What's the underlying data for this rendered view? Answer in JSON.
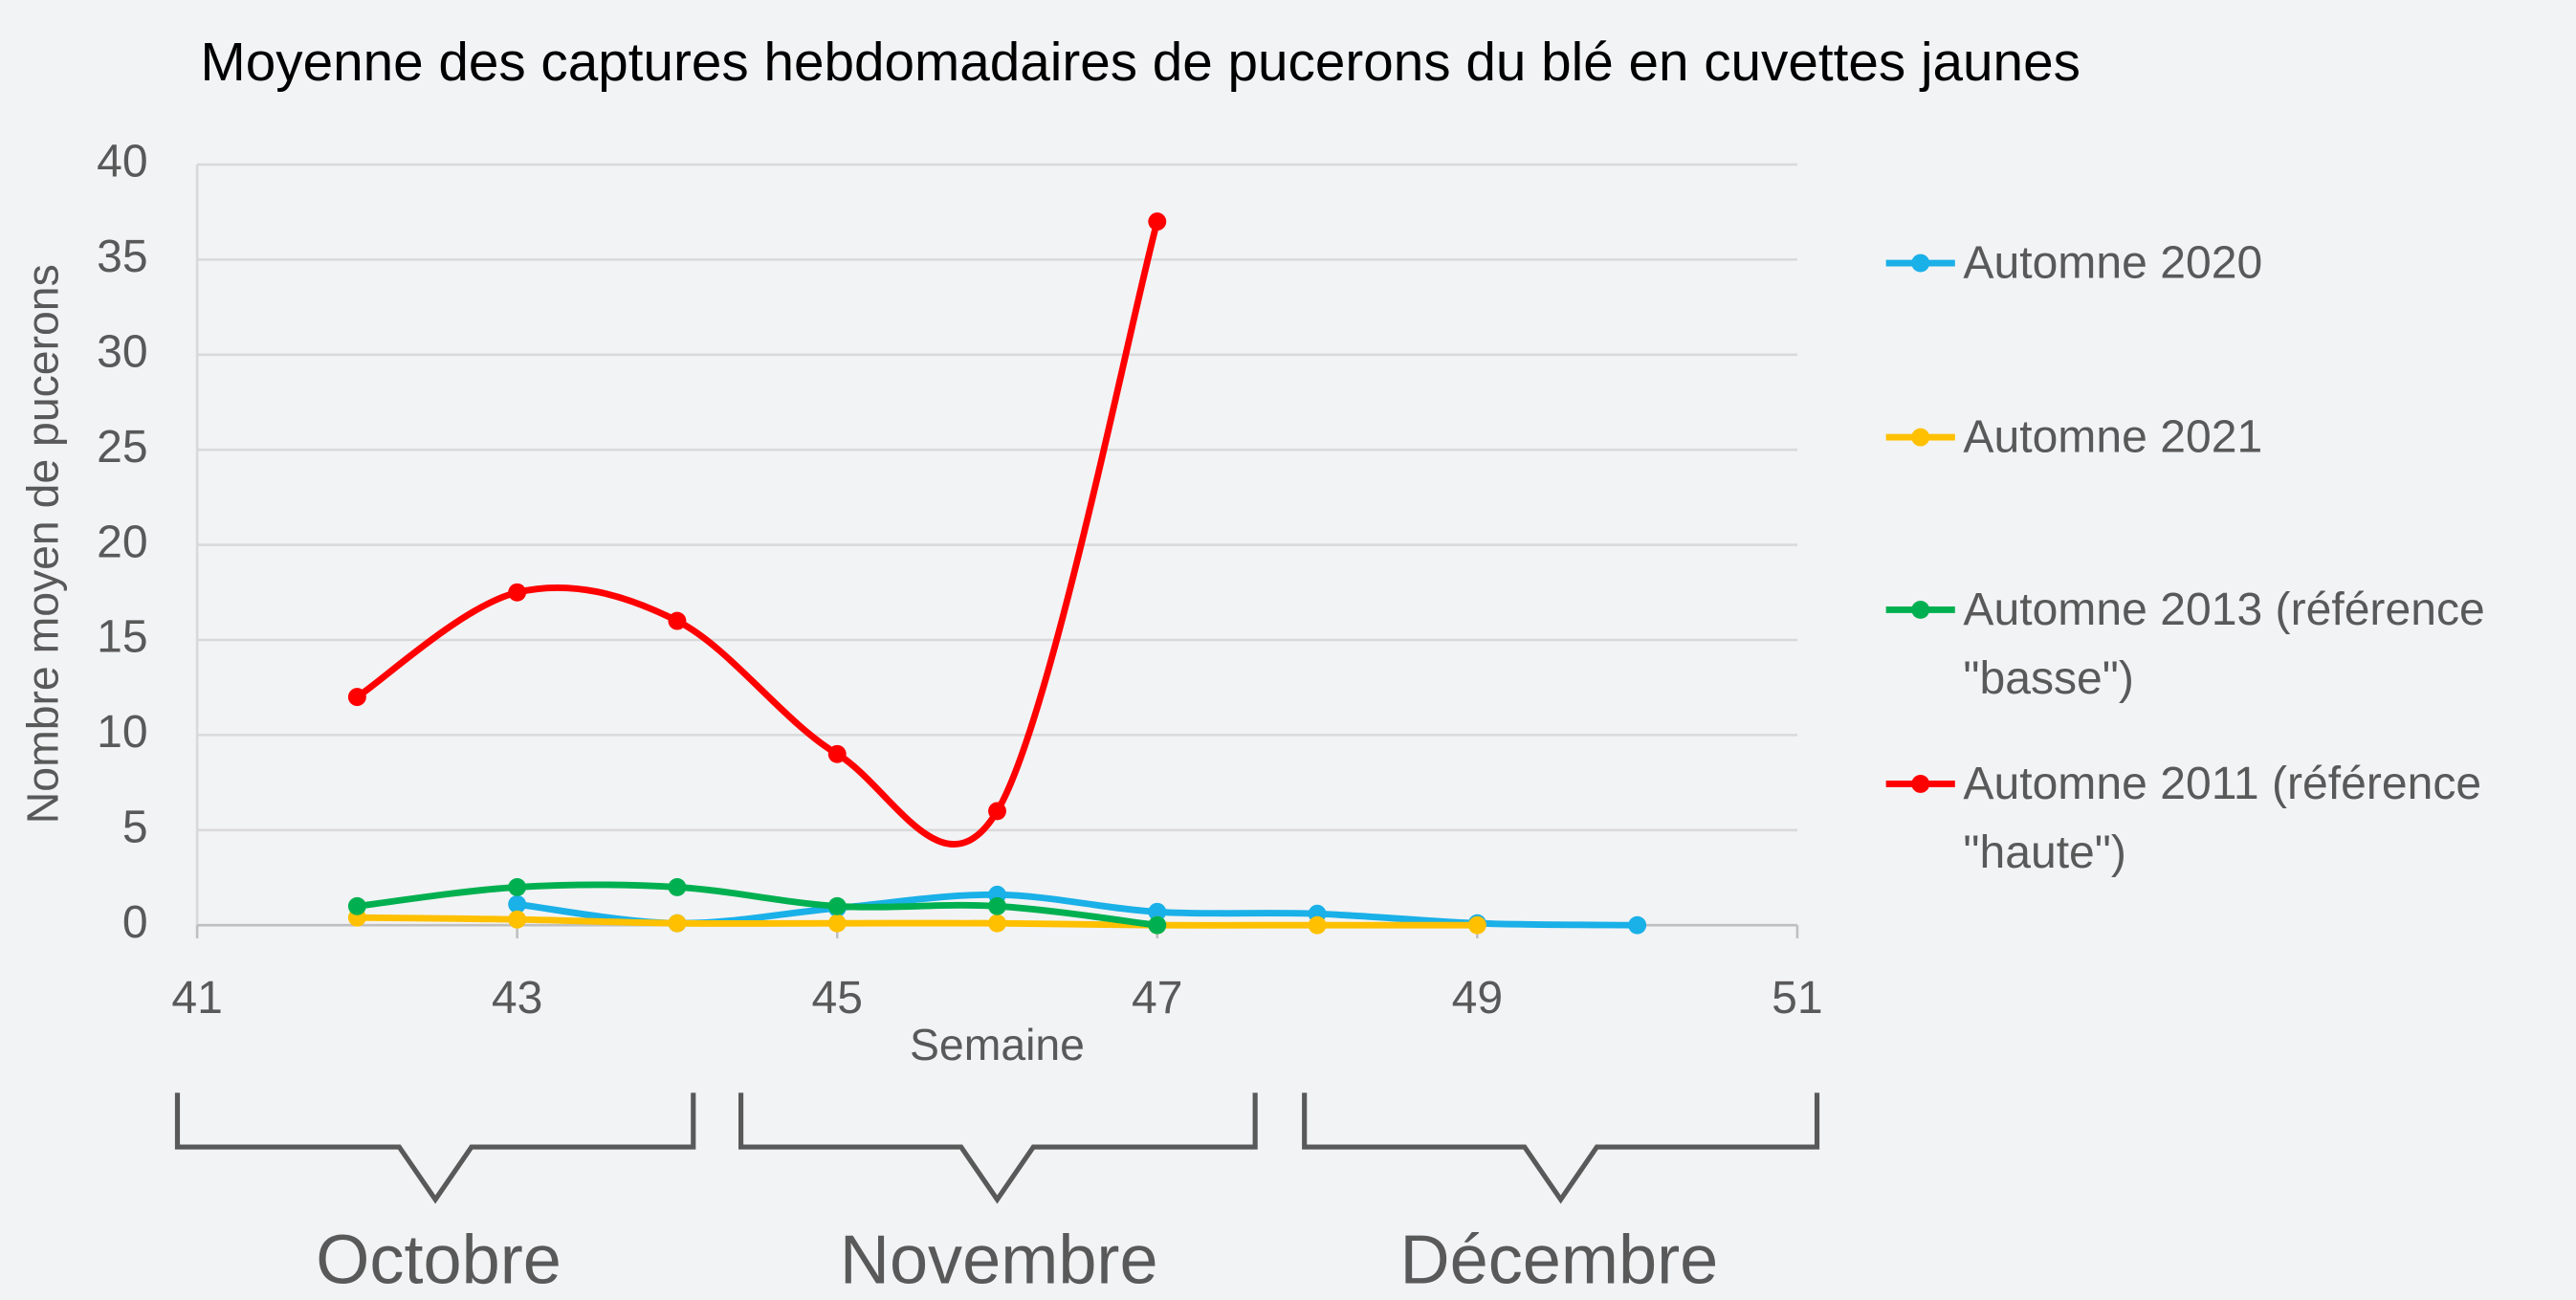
{
  "chart_data": {
    "type": "line",
    "title": "Moyenne des captures hebdomadaires de pucerons du blé en cuvettes jaunes",
    "xlabel": "Semaine",
    "ylabel": "Nombre moyen de pucerons",
    "x": [
      42,
      43,
      44,
      45,
      46,
      47,
      48,
      49,
      50
    ],
    "series": [
      {
        "name": "Automne 2020",
        "color": "#1ab0e8",
        "values": [
          null,
          1.1,
          0.1,
          0.9,
          1.6,
          0.7,
          0.6,
          0.1,
          0
        ]
      },
      {
        "name": "Automne 2021",
        "color": "#ffc000",
        "values": [
          0.4,
          0.3,
          0.1,
          0.1,
          0.1,
          0,
          0,
          0,
          null
        ]
      },
      {
        "name": "Automne 2013 (référence \"basse\")",
        "color": "#00b050",
        "values": [
          1,
          2,
          2,
          1,
          1,
          0,
          null,
          null,
          null
        ]
      },
      {
        "name": "Automne 2011 (référence \"haute\")",
        "color": "#ff0000",
        "values": [
          12,
          17.5,
          16,
          9,
          6,
          37,
          null,
          null,
          null
        ]
      }
    ],
    "xlim": [
      41,
      51
    ],
    "xticks": [
      41,
      43,
      45,
      47,
      49,
      51
    ],
    "ylim": [
      0,
      40
    ],
    "yticks": [
      0,
      5,
      10,
      15,
      20,
      25,
      30,
      35,
      40
    ],
    "grid": true,
    "smooth": true,
    "legend": "right",
    "annotations": [
      "Octobre",
      "Novembre",
      "Décembre"
    ]
  }
}
